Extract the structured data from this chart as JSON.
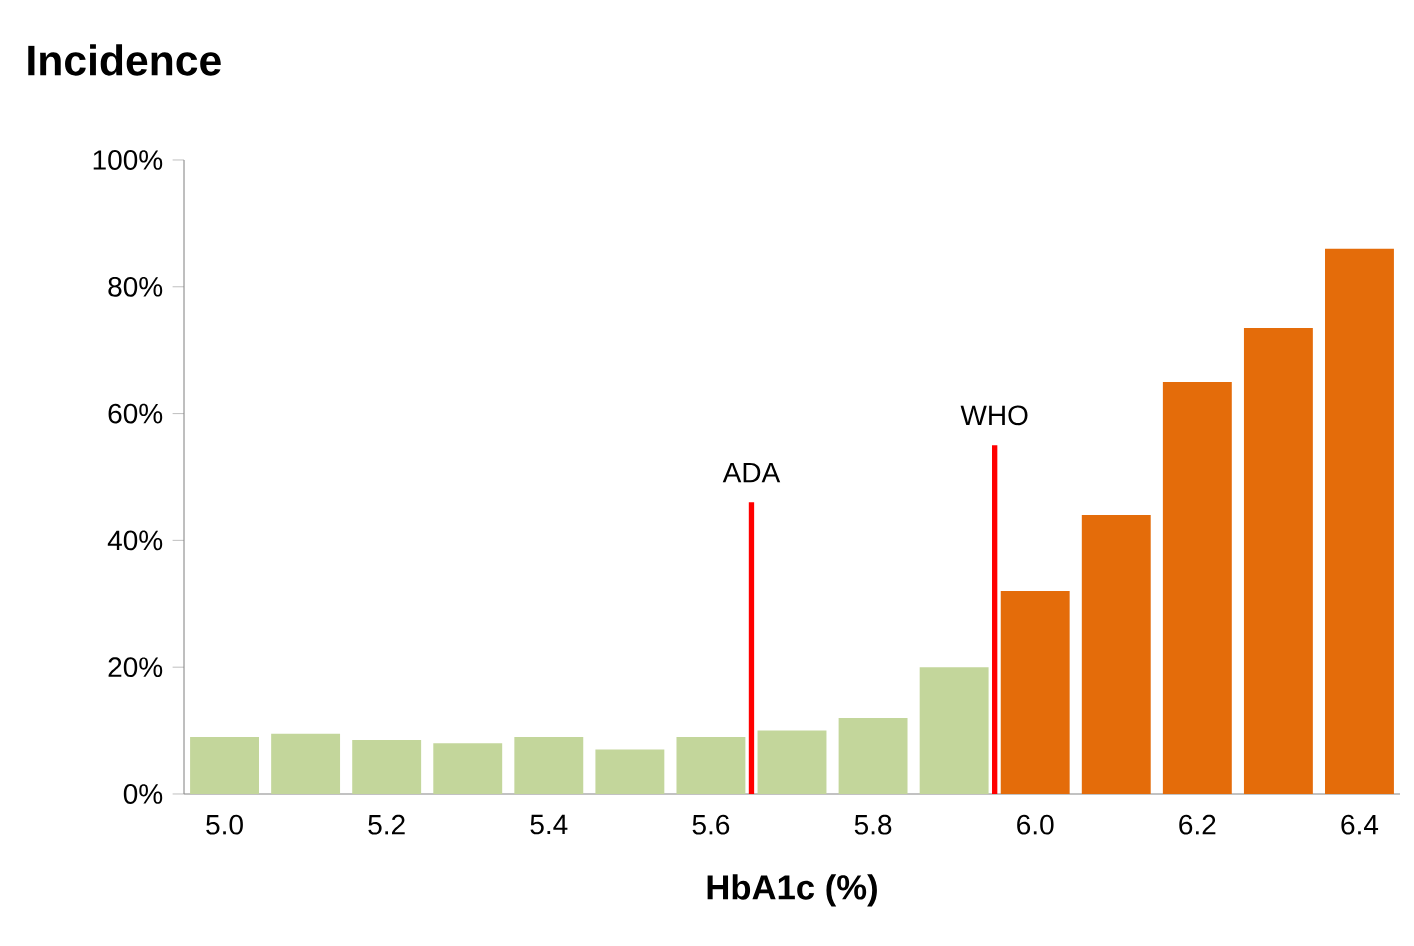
{
  "chart_data": {
    "type": "bar",
    "title": "Incidence",
    "xlabel": "HbA1c (%)",
    "x": [
      5.0,
      5.1,
      5.2,
      5.3,
      5.4,
      5.5,
      5.6,
      5.7,
      5.8,
      5.9,
      6.0,
      6.1,
      6.2,
      6.3,
      6.4
    ],
    "values": [
      9,
      9.5,
      8.5,
      8,
      9,
      7,
      9,
      10,
      12,
      20,
      32,
      44,
      65,
      73.5,
      86
    ],
    "colors": [
      "#c3d69b",
      "#c3d69b",
      "#c3d69b",
      "#c3d69b",
      "#c3d69b",
      "#c3d69b",
      "#c3d69b",
      "#c3d69b",
      "#c3d69b",
      "#c3d69b",
      "#e46c0a",
      "#e46c0a",
      "#e46c0a",
      "#e46c0a",
      "#e46c0a"
    ],
    "xlim": [
      4.95,
      6.45
    ],
    "xticks": [
      {
        "value": 5.0,
        "label": "5.0"
      },
      {
        "value": 5.2,
        "label": "5.2"
      },
      {
        "value": 5.4,
        "label": "5.4"
      },
      {
        "value": 5.6,
        "label": "5.6"
      },
      {
        "value": 5.8,
        "label": "5.8"
      },
      {
        "value": 6.0,
        "label": "6.0"
      },
      {
        "value": 6.2,
        "label": "6.2"
      },
      {
        "value": 6.4,
        "label": "6.4"
      }
    ],
    "ylim": [
      0,
      100
    ],
    "yticks": [
      {
        "value": 0,
        "label": "0%"
      },
      {
        "value": 20,
        "label": "20%"
      },
      {
        "value": 40,
        "label": "40%"
      },
      {
        "value": 60,
        "label": "60%"
      },
      {
        "value": 80,
        "label": "80%"
      },
      {
        "value": 100,
        "label": "100%"
      }
    ],
    "ref_lines": [
      {
        "axis": "x",
        "value": 5.65,
        "color": "#ff0000"
      },
      {
        "axis": "x",
        "value": 5.95,
        "color": "#ff0000"
      }
    ],
    "annotations": [
      {
        "text": "ADA",
        "x": 5.65,
        "y": 46
      },
      {
        "text": "WHO",
        "x": 5.95,
        "y": 55
      }
    ],
    "grid": false
  }
}
